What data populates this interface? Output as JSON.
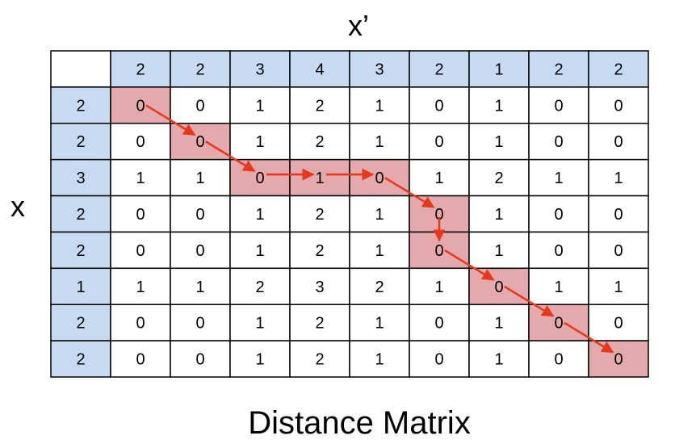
{
  "diagram": {
    "x_prime_label": "x’",
    "x_label": "x",
    "caption": "Distance Matrix",
    "x_prime_sequence": [
      "2",
      "2",
      "3",
      "4",
      "3",
      "2",
      "1",
      "2",
      "2"
    ],
    "x_sequence": [
      "2",
      "2",
      "3",
      "2",
      "2",
      "1",
      "2",
      "2"
    ],
    "matrix": [
      [
        "0",
        "0",
        "1",
        "2",
        "1",
        "0",
        "1",
        "0",
        "0"
      ],
      [
        "0",
        "0",
        "1",
        "2",
        "1",
        "0",
        "1",
        "0",
        "0"
      ],
      [
        "1",
        "1",
        "0",
        "1",
        "0",
        "1",
        "2",
        "1",
        "1"
      ],
      [
        "0",
        "0",
        "1",
        "2",
        "1",
        "0",
        "1",
        "0",
        "0"
      ],
      [
        "0",
        "0",
        "1",
        "2",
        "1",
        "0",
        "1",
        "0",
        "0"
      ],
      [
        "1",
        "1",
        "2",
        "3",
        "2",
        "1",
        "0",
        "1",
        "1"
      ],
      [
        "0",
        "0",
        "1",
        "2",
        "1",
        "0",
        "1",
        "0",
        "0"
      ],
      [
        "0",
        "0",
        "1",
        "2",
        "1",
        "0",
        "1",
        "0",
        "0"
      ]
    ],
    "warp_path": [
      [
        0,
        0
      ],
      [
        1,
        1
      ],
      [
        2,
        2
      ],
      [
        2,
        3
      ],
      [
        2,
        4
      ],
      [
        3,
        5
      ],
      [
        4,
        5
      ],
      [
        5,
        6
      ],
      [
        6,
        7
      ],
      [
        7,
        8
      ]
    ],
    "colors": {
      "header_fill": "#c6daf2",
      "path_fill": "#e3a9ac",
      "cell_fill": "#ffffff",
      "grid_line": "#000000",
      "arrow": "#e8381c"
    }
  }
}
